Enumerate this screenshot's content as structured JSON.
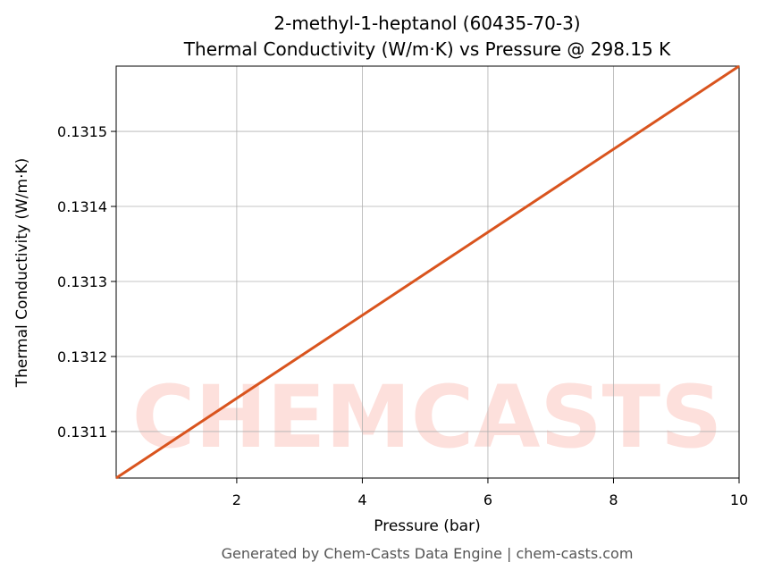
{
  "chart_data": {
    "type": "line",
    "title": "2-methyl-1-heptanol (60435-70-3)",
    "subtitle": "Thermal Conductivity (W/m·K) vs Pressure @ 298.15 K",
    "x_label": "Pressure (bar)",
    "y_label": "Thermal Conductivity (W/m·K)",
    "watermark": "CHEMCASTS",
    "footer": "Generated by Chem-Casts Data Engine | chem-casts.com",
    "x": [
      0.08,
      10
    ],
    "series": [
      {
        "name": "Thermal Conductivity",
        "color": "#d9541e",
        "values": [
          0.131038,
          0.131587
        ]
      }
    ],
    "xlim": [
      0.08,
      10
    ],
    "xticks": [
      2,
      4,
      6,
      8,
      10
    ],
    "ylim": [
      0.131038,
      0.131587
    ],
    "yticks": [
      0.1311,
      0.1312,
      0.1313,
      0.1314,
      0.1315
    ],
    "grid": true
  }
}
